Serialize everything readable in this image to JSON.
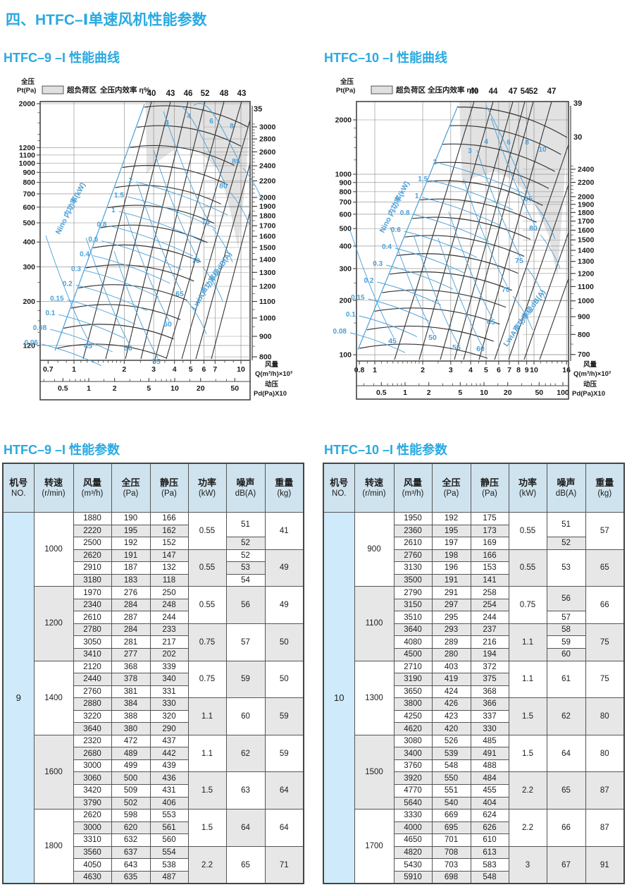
{
  "page": {
    "title": "四、HTFC–Ⅰ单速风机性能参数"
  },
  "chart_data": [
    {
      "type": "line",
      "title": "HTFC–9 –I 性能曲线",
      "legend": {
        "overload": "超负荷区",
        "efficiency": "全压内效率 η%"
      },
      "pressure_axis": {
        "label": "全压\nPt(Pa)",
        "ticks": [
          2000,
          1200,
          1100,
          1000,
          900,
          800,
          700,
          600,
          500,
          400,
          300,
          200,
          120
        ]
      },
      "flow_axis": {
        "label": "风量\nQ(m³/h)×10³",
        "ticks": [
          0.7,
          1,
          2,
          3,
          4,
          5,
          6,
          7,
          10
        ]
      },
      "dynamic_pressure_axis": {
        "label": "动压\nPd(Pa)X10",
        "ticks": [
          0.5,
          1,
          2,
          5,
          10,
          20,
          50
        ]
      },
      "rpm_axis": {
        "ticks": [
          3000,
          2800,
          2600,
          2400,
          2200,
          2000,
          1900,
          1800,
          1700,
          1600,
          1500,
          1400,
          1300,
          1200,
          1100,
          1000,
          900,
          800
        ],
        "top_labels": [
          "35"
        ]
      },
      "efficiency_top_labels": [
        40,
        43,
        46,
        52,
        48,
        43
      ],
      "efficiency_contour_labels": [
        45,
        50,
        55,
        60,
        65,
        70,
        75,
        80,
        85
      ],
      "power_curve_labels": [
        2,
        1.5,
        1,
        0.8,
        0.6,
        0.4,
        0.3,
        0.2,
        0.15,
        0.1,
        0.08,
        0.06
      ],
      "power_upper_labels": [
        3,
        4,
        6,
        8
      ],
      "power_axis_label": "Nino 内功率(kW)",
      "noise_axis_label": "LwiA声功率级dB(A)"
    },
    {
      "type": "line",
      "title": "HTFC–10 –I 性能曲线",
      "legend": {
        "overload": "超负荷区",
        "efficiency": "全压内效率 η%"
      },
      "pressure_axis": {
        "label": "全压\nPt(Pa)",
        "ticks": [
          2000,
          1000,
          900,
          800,
          700,
          600,
          500,
          400,
          300,
          200,
          100
        ]
      },
      "flow_axis": {
        "label": "风量\nQ(m³/h)×10³",
        "ticks": [
          0.8,
          1,
          2,
          3,
          4,
          5,
          6,
          7,
          8,
          9,
          10,
          16
        ]
      },
      "dynamic_pressure_axis": {
        "label": "动压\nPd(Pa)X10",
        "ticks": [
          0.5,
          1,
          2,
          5,
          10,
          20,
          50,
          100
        ]
      },
      "rpm_axis": {
        "ticks": [
          2400,
          2200,
          2000,
          1900,
          1800,
          1700,
          1600,
          1500,
          1400,
          1300,
          1200,
          1100,
          1000,
          900,
          800,
          700
        ],
        "top_labels": [
          "39",
          "30"
        ]
      },
      "efficiency_top_labels": [
        40,
        44,
        47,
        54,
        52,
        47
      ],
      "efficiency_contour_labels": [
        45,
        50,
        55,
        60,
        65,
        70,
        75,
        80,
        85
      ],
      "power_curve_labels": [
        2,
        1.5,
        1,
        0.8,
        0.6,
        0.4,
        0.3,
        0.2,
        0.15,
        0.1,
        0.08
      ],
      "power_upper_labels": [
        3,
        4,
        6,
        8,
        10
      ],
      "power_axis_label": "Nino 内功率(kW)",
      "noise_axis_label": "LwiA声功率级dB(A)"
    }
  ],
  "tables": [
    {
      "title": "HTFC–9 –I 性能参数",
      "fan_no": "9",
      "headers": [
        [
          "机号",
          "NO."
        ],
        [
          "转速",
          "(r/min)"
        ],
        [
          "风量",
          "(m³/h)"
        ],
        [
          "全压",
          "(Pa)"
        ],
        [
          "静压",
          "(Pa)"
        ],
        [
          "功率",
          "(kW)"
        ],
        [
          "噪声",
          "dB(A)"
        ],
        [
          "重量",
          "(kg)"
        ]
      ],
      "groups": [
        {
          "speed": "1000",
          "rows": [
            [
              "1880",
              "190",
              "166"
            ],
            [
              "2220",
              "195",
              "162"
            ],
            [
              "2500",
              "192",
              "152"
            ],
            [
              "2620",
              "191",
              "147"
            ],
            [
              "2910",
              "187",
              "132"
            ],
            [
              "3180",
              "183",
              "118"
            ]
          ],
          "power": [
            "0.55",
            "0.55"
          ],
          "noise": [
            [
              "51",
              2
            ],
            [
              "52",
              1
            ],
            [
              "52",
              1
            ],
            [
              "53",
              1
            ],
            [
              "54",
              1
            ]
          ],
          "weight": [
            "41",
            "49"
          ]
        },
        {
          "speed": "1200",
          "rows": [
            [
              "1970",
              "276",
              "250"
            ],
            [
              "2340",
              "284",
              "248"
            ],
            [
              "2610",
              "287",
              "244"
            ],
            [
              "2780",
              "284",
              "233"
            ],
            [
              "3050",
              "281",
              "217"
            ],
            [
              "3410",
              "277",
              "202"
            ]
          ],
          "power": [
            "0.55",
            "0.75"
          ],
          "noise": [
            [
              "56",
              3
            ],
            [
              "57",
              3
            ]
          ],
          "weight": [
            "49",
            "50"
          ]
        },
        {
          "speed": "1400",
          "rows": [
            [
              "2120",
              "368",
              "339"
            ],
            [
              "2440",
              "378",
              "340"
            ],
            [
              "2760",
              "381",
              "331"
            ],
            [
              "2880",
              "384",
              "330"
            ],
            [
              "3220",
              "388",
              "320"
            ],
            [
              "3640",
              "380",
              "290"
            ]
          ],
          "power": [
            "0.75",
            "1.1"
          ],
          "noise": [
            [
              "59",
              3
            ],
            [
              "60",
              3
            ]
          ],
          "weight": [
            "50",
            "59"
          ]
        },
        {
          "speed": "1600",
          "rows": [
            [
              "2320",
              "472",
              "437"
            ],
            [
              "2680",
              "489",
              "442"
            ],
            [
              "3000",
              "499",
              "439"
            ],
            [
              "3060",
              "500",
              "436"
            ],
            [
              "3420",
              "509",
              "431"
            ],
            [
              "3790",
              "502",
              "406"
            ]
          ],
          "power": [
            "1.1",
            "1.5"
          ],
          "noise": [
            [
              "62",
              3
            ],
            [
              "63",
              3
            ]
          ],
          "weight": [
            "59",
            "64"
          ]
        },
        {
          "speed": "1800",
          "rows": [
            [
              "2620",
              "598",
              "553"
            ],
            [
              "3000",
              "620",
              "561"
            ],
            [
              "3310",
              "632",
              "560"
            ],
            [
              "3560",
              "637",
              "554"
            ],
            [
              "4050",
              "643",
              "538"
            ],
            [
              "4630",
              "635",
              "487"
            ]
          ],
          "power": [
            "1.5",
            "2.2"
          ],
          "noise": [
            [
              "64",
              3
            ],
            [
              "65",
              3
            ]
          ],
          "weight": [
            "64",
            "71"
          ]
        }
      ]
    },
    {
      "title": "HTFC–10 –I 性能参数",
      "fan_no": "10",
      "headers": [
        [
          "机号",
          "NO."
        ],
        [
          "转速",
          "(r/min)"
        ],
        [
          "风量",
          "(m³/h)"
        ],
        [
          "全压",
          "(Pa)"
        ],
        [
          "静压",
          "(Pa)"
        ],
        [
          "功率",
          "(kW)"
        ],
        [
          "噪声",
          "dB(A)"
        ],
        [
          "重量",
          "(kg)"
        ]
      ],
      "groups": [
        {
          "speed": "900",
          "rows": [
            [
              "1950",
              "192",
              "175"
            ],
            [
              "2360",
              "195",
              "173"
            ],
            [
              "2610",
              "197",
              "169"
            ],
            [
              "2760",
              "198",
              "166"
            ],
            [
              "3130",
              "196",
              "153"
            ],
            [
              "3500",
              "191",
              "141"
            ]
          ],
          "power": [
            "0.55",
            "0.55"
          ],
          "noise": [
            [
              "51",
              2
            ],
            [
              "52",
              1
            ],
            [
              "53",
              3
            ]
          ],
          "weight": [
            "57",
            "65"
          ]
        },
        {
          "speed": "1100",
          "rows": [
            [
              "2790",
              "291",
              "258"
            ],
            [
              "3150",
              "297",
              "254"
            ],
            [
              "3510",
              "295",
              "244"
            ],
            [
              "3640",
              "293",
              "237"
            ],
            [
              "4080",
              "289",
              "216"
            ],
            [
              "4500",
              "280",
              "194"
            ]
          ],
          "power": [
            "0.75",
            "1.1"
          ],
          "noise": [
            [
              "56",
              2
            ],
            [
              "57",
              1
            ],
            [
              "58",
              1
            ],
            [
              "59",
              1
            ],
            [
              "60",
              1
            ]
          ],
          "weight": [
            "66",
            "75"
          ]
        },
        {
          "speed": "1300",
          "rows": [
            [
              "2710",
              "403",
              "372"
            ],
            [
              "3190",
              "419",
              "375"
            ],
            [
              "3650",
              "424",
              "368"
            ],
            [
              "3800",
              "426",
              "366"
            ],
            [
              "4250",
              "423",
              "337"
            ],
            [
              "4620",
              "420",
              "330"
            ]
          ],
          "power": [
            "1.1",
            "1.5"
          ],
          "noise": [
            [
              "61",
              3
            ],
            [
              "62",
              3
            ]
          ],
          "weight": [
            "75",
            "80"
          ]
        },
        {
          "speed": "1500",
          "rows": [
            [
              "3080",
              "526",
              "485"
            ],
            [
              "3400",
              "539",
              "491"
            ],
            [
              "3760",
              "548",
              "488"
            ],
            [
              "3920",
              "550",
              "484"
            ],
            [
              "4770",
              "551",
              "455"
            ],
            [
              "5640",
              "540",
              "404"
            ]
          ],
          "power": [
            "1.5",
            "2.2"
          ],
          "noise": [
            [
              "64",
              3
            ],
            [
              "65",
              3
            ]
          ],
          "weight": [
            "80",
            "87"
          ]
        },
        {
          "speed": "1700",
          "rows": [
            [
              "3330",
              "669",
              "624"
            ],
            [
              "4000",
              "695",
              "626"
            ],
            [
              "4650",
              "701",
              "610"
            ],
            [
              "4820",
              "708",
              "613"
            ],
            [
              "5430",
              "703",
              "583"
            ],
            [
              "5910",
              "698",
              "548"
            ]
          ],
          "power": [
            "2.2",
            "3"
          ],
          "noise": [
            [
              "66",
              3
            ],
            [
              "67",
              3
            ]
          ],
          "weight": [
            "87",
            "91"
          ]
        }
      ]
    }
  ]
}
